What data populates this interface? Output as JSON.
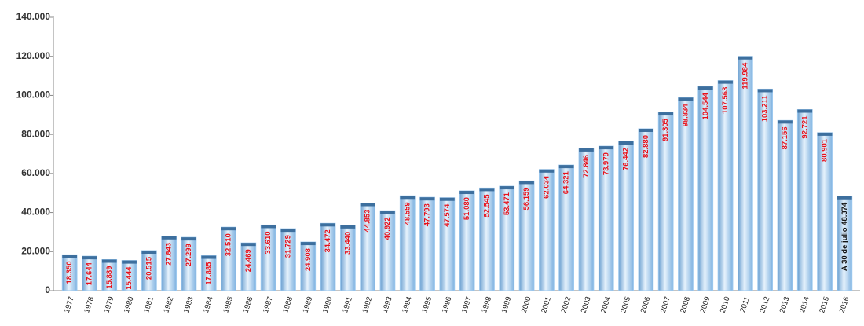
{
  "chart_data": {
    "type": "bar",
    "categories": [
      "1977",
      "1978",
      "1979",
      "1980",
      "1981",
      "1982",
      "1983",
      "1984",
      "1985",
      "1986",
      "1987",
      "1988",
      "1989",
      "1990",
      "1991",
      "1992",
      "1993",
      "1994",
      "1995",
      "1996",
      "1997",
      "1998",
      "1999",
      "2000",
      "2001",
      "2002",
      "2003",
      "2004",
      "2005",
      "2006",
      "2007",
      "2008",
      "2009",
      "2010",
      "2011",
      "2012",
      "2013",
      "2014",
      "2015",
      "2016"
    ],
    "values": [
      18350,
      17644,
      15889,
      15444,
      20515,
      27843,
      27299,
      17885,
      32510,
      24469,
      33610,
      31729,
      24908,
      34472,
      33440,
      44853,
      40922,
      48559,
      47793,
      47574,
      51080,
      52545,
      53471,
      56159,
      62034,
      64321,
      72846,
      73979,
      76442,
      82880,
      91305,
      98834,
      104544,
      107563,
      119984,
      103211,
      87156,
      92721,
      80901,
      48374
    ],
    "value_labels": [
      "18.350",
      "17.644",
      "15.889",
      "15.444",
      "20.515",
      "27.843",
      "27.299",
      "17.885",
      "32.510",
      "24.469",
      "33.610",
      "31.729",
      "24.908",
      "34.472",
      "33.440",
      "44.853",
      "40.922",
      "48.559",
      "47.793",
      "47.574",
      "51.080",
      "52.545",
      "53.471",
      "56.159",
      "62.034",
      "64.321",
      "72.846",
      "73.979",
      "76.442",
      "82.880",
      "91.305",
      "98.834",
      "104.544",
      "107.563",
      "119.984",
      "103.211",
      "87.156",
      "92.721",
      "80.901",
      "A 30 de julio 48.374"
    ],
    "value_label_colors": [
      "#e8101a",
      "#e8101a",
      "#e8101a",
      "#e8101a",
      "#e8101a",
      "#e8101a",
      "#e8101a",
      "#e8101a",
      "#e8101a",
      "#e8101a",
      "#e8101a",
      "#e8101a",
      "#e8101a",
      "#e8101a",
      "#e8101a",
      "#e8101a",
      "#e8101a",
      "#e8101a",
      "#e8101a",
      "#e8101a",
      "#e8101a",
      "#e8101a",
      "#e8101a",
      "#e8101a",
      "#e8101a",
      "#e8101a",
      "#e8101a",
      "#e8101a",
      "#e8101a",
      "#e8101a",
      "#e8101a",
      "#e8101a",
      "#e8101a",
      "#e8101a",
      "#e8101a",
      "#e8101a",
      "#e8101a",
      "#e8101a",
      "#e8101a",
      "#111111"
    ],
    "color": "#9cc8ee",
    "ylim": [
      0,
      140000
    ],
    "yticks": [
      0,
      {
        "value": 20000,
        "label": "20.000"
      },
      {
        "value": 40000,
        "label": "40.000"
      },
      {
        "value": 60000,
        "label": "60.000"
      },
      {
        "value": 80000,
        "label": "80.000"
      },
      {
        "value": 100000,
        "label": "100.000"
      },
      {
        "value": 120000,
        "label": "120.000"
      },
      {
        "value": 140000,
        "label": "140.000"
      }
    ],
    "grid": false
  }
}
